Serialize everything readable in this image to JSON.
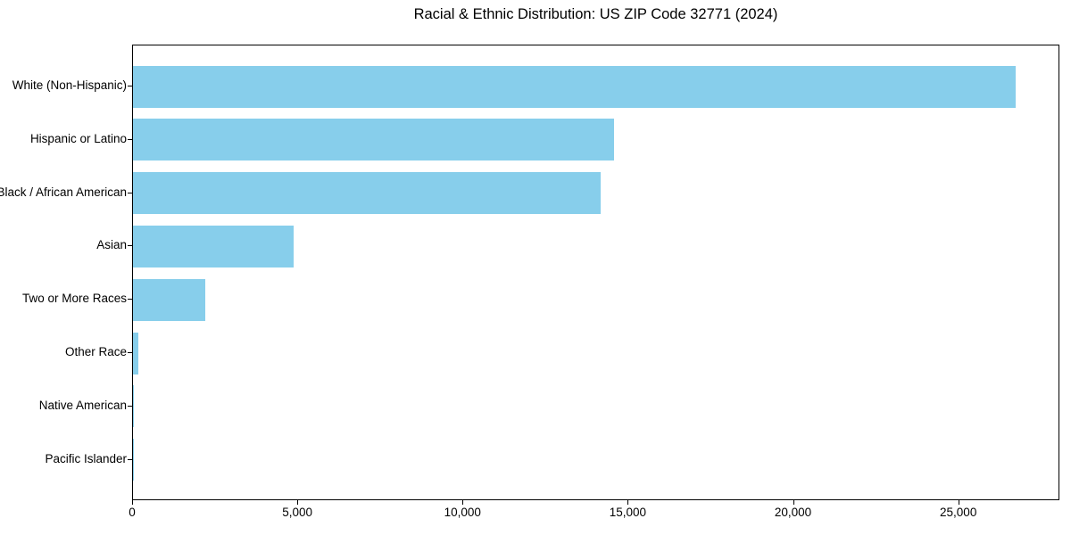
{
  "page": {
    "background": "#ffffff"
  },
  "chart_data": {
    "type": "bar",
    "orientation": "horizontal",
    "title": "Racial & Ethnic Distribution: US ZIP Code 32771 (2024)",
    "categories": [
      "White (Non-Hispanic)",
      "Hispanic or Latino",
      "Black / African American",
      "Asian",
      "Two or More Races",
      "Other Race",
      "Native American",
      "Pacific Islander"
    ],
    "values": [
      26700,
      14560,
      14140,
      4850,
      2200,
      150,
      40,
      10
    ],
    "xlabel": "",
    "ylabel": "",
    "xlim": [
      0,
      28060
    ],
    "xticks": [
      0,
      5000,
      10000,
      15000,
      20000,
      25000
    ],
    "xtick_labels": [
      "0",
      "5,000",
      "10,000",
      "15,000",
      "20,000",
      "25,000"
    ],
    "bar_color": "#87CEEB",
    "axis_color": "#000000",
    "text_color": "#000000",
    "grid": false,
    "legend": "none"
  }
}
